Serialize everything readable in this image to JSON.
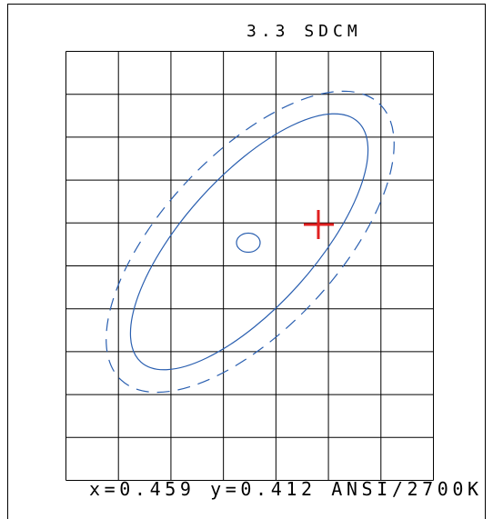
{
  "title": "3.3 SDCM",
  "footer": "x=0.459 y=0.412 ANSI/2700K"
}
